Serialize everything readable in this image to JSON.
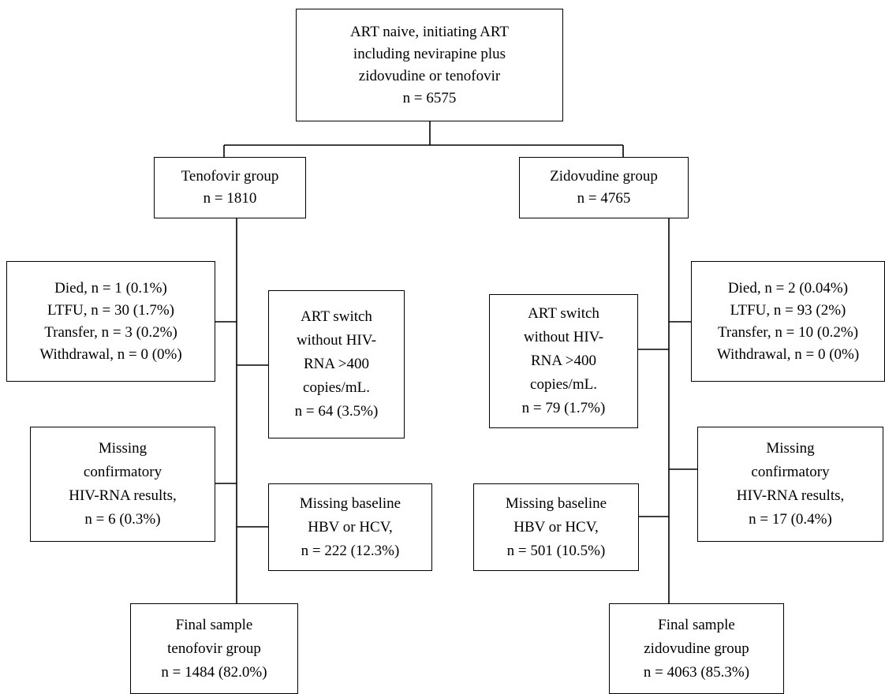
{
  "boxes": {
    "root": [
      "ART  naive, initiating ART",
      "including nevirapine plus",
      "zidovudine or tenofovir",
      "n = 6575"
    ],
    "tenofovir_group": [
      "Tenofovir group",
      "n = 1810"
    ],
    "zidovudine_group": [
      "Zidovudine group",
      "n = 4765"
    ],
    "tenofovir_excluded": [
      "Died, n = 1 (0.1%)",
      "LTFU, n = 30 (1.7%)",
      "Transfer, n = 3 (0.2%)",
      "Withdrawal, n = 0 (0%)"
    ],
    "tenofovir_art_switch": [
      "ART switch",
      "without HIV-",
      "RNA >400",
      "copies/mL.",
      "n = 64 (3.5%)"
    ],
    "tenofovir_missing_confirm": [
      "Missing",
      "confirmatory",
      "HIV-RNA results,",
      "n = 6 (0.3%)"
    ],
    "tenofovir_missing_baseline": [
      "Missing baseline",
      "HBV or HCV,",
      "n = 222 (12.3%)"
    ],
    "tenofovir_final": [
      "Final sample",
      "tenofovir group",
      "n = 1484 (82.0%)"
    ],
    "zidovudine_art_switch": [
      "ART switch",
      "without HIV-",
      "RNA >400",
      "copies/mL.",
      "n = 79 (1.7%)"
    ],
    "zidovudine_excluded": [
      "Died, n = 2 (0.04%)",
      "LTFU, n = 93 (2%)",
      "Transfer, n = 10 (0.2%)",
      "Withdrawal, n = 0 (0%)"
    ],
    "zidovudine_missing_baseline": [
      "Missing baseline",
      "HBV or HCV,",
      "n = 501 (10.5%)"
    ],
    "zidovudine_missing_confirm": [
      "Missing",
      "confirmatory",
      "HIV-RNA results,",
      "n = 17 (0.4%)"
    ],
    "zidovudine_final": [
      "Final sample",
      "zidovudine group",
      "n = 4063 (85.3%)"
    ]
  }
}
